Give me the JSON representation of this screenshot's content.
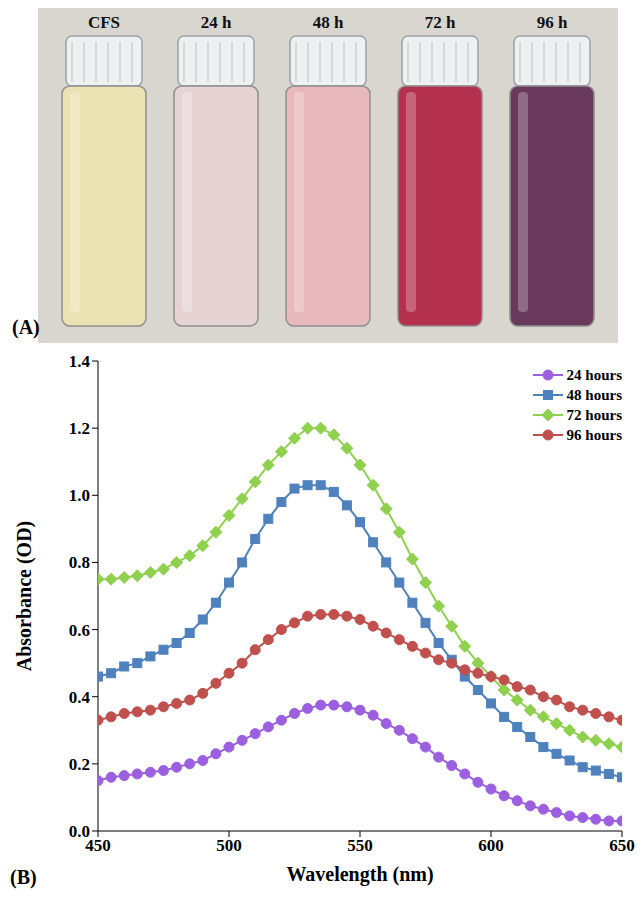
{
  "chart_data": {
    "type": "line",
    "x_label": "Wavelength (nm)",
    "y_label": "Absorbance (OD)",
    "annotations": [
      "(B)"
    ],
    "x": [
      450,
      455,
      460,
      465,
      470,
      475,
      480,
      485,
      490,
      495,
      500,
      505,
      510,
      515,
      520,
      525,
      530,
      535,
      540,
      545,
      550,
      555,
      560,
      565,
      570,
      575,
      580,
      585,
      590,
      595,
      600,
      605,
      610,
      615,
      620,
      625,
      630,
      635,
      640,
      645,
      650
    ],
    "series": [
      {
        "name": "24 hours",
        "color": "#9b5fe0",
        "marker": "circle",
        "values": [
          0.15,
          0.16,
          0.165,
          0.17,
          0.175,
          0.18,
          0.19,
          0.2,
          0.21,
          0.23,
          0.25,
          0.27,
          0.29,
          0.31,
          0.33,
          0.35,
          0.365,
          0.375,
          0.375,
          0.37,
          0.36,
          0.345,
          0.32,
          0.3,
          0.275,
          0.25,
          0.22,
          0.195,
          0.17,
          0.145,
          0.125,
          0.105,
          0.09,
          0.075,
          0.065,
          0.055,
          0.045,
          0.04,
          0.035,
          0.03,
          0.03
        ]
      },
      {
        "name": "48 hours",
        "color": "#4f81bd",
        "marker": "square",
        "values": [
          0.46,
          0.47,
          0.49,
          0.5,
          0.52,
          0.54,
          0.56,
          0.59,
          0.63,
          0.68,
          0.74,
          0.8,
          0.87,
          0.93,
          0.98,
          1.02,
          1.03,
          1.03,
          1.01,
          0.97,
          0.92,
          0.86,
          0.8,
          0.74,
          0.68,
          0.62,
          0.56,
          0.51,
          0.46,
          0.42,
          0.38,
          0.34,
          0.31,
          0.28,
          0.25,
          0.23,
          0.21,
          0.19,
          0.18,
          0.17,
          0.16
        ]
      },
      {
        "name": "72 hours",
        "color": "#8fd14f",
        "marker": "diamond",
        "values": [
          0.75,
          0.75,
          0.755,
          0.76,
          0.77,
          0.78,
          0.8,
          0.82,
          0.85,
          0.89,
          0.94,
          0.99,
          1.04,
          1.09,
          1.13,
          1.17,
          1.2,
          1.2,
          1.18,
          1.14,
          1.09,
          1.03,
          0.96,
          0.89,
          0.81,
          0.74,
          0.67,
          0.61,
          0.55,
          0.5,
          0.46,
          0.42,
          0.39,
          0.36,
          0.34,
          0.32,
          0.3,
          0.28,
          0.27,
          0.26,
          0.25
        ]
      },
      {
        "name": "96 hours",
        "color": "#c0504d",
        "marker": "circle",
        "values": [
          0.33,
          0.34,
          0.35,
          0.355,
          0.36,
          0.37,
          0.38,
          0.39,
          0.41,
          0.44,
          0.47,
          0.5,
          0.54,
          0.57,
          0.6,
          0.62,
          0.64,
          0.645,
          0.645,
          0.64,
          0.63,
          0.61,
          0.59,
          0.57,
          0.55,
          0.53,
          0.51,
          0.5,
          0.48,
          0.47,
          0.46,
          0.45,
          0.43,
          0.42,
          0.4,
          0.39,
          0.37,
          0.36,
          0.35,
          0.34,
          0.33
        ]
      }
    ],
    "xlim": [
      450,
      650
    ],
    "xticks": [
      450,
      500,
      550,
      600,
      650
    ],
    "ylim": [
      0,
      1.4
    ],
    "yticks": [
      {
        "value": 0,
        "label": "0.0"
      },
      0.2,
      0.4,
      0.6,
      0.8,
      {
        "value": 1,
        "label": "1.0"
      },
      1.2,
      1.4
    ],
    "grid": false,
    "legend": "upper right"
  },
  "image": {
    "panel_label": "(A)",
    "tubes": [
      {
        "label": "CFS",
        "color": "#ebe2b4"
      },
      {
        "label": "24 h",
        "color": "#e6d4d4"
      },
      {
        "label": "48 h",
        "color": "#e8b9bc"
      },
      {
        "label": "72 h",
        "color": "#b3304f"
      },
      {
        "label": "96 h",
        "color": "#6a3a5c"
      }
    ]
  }
}
